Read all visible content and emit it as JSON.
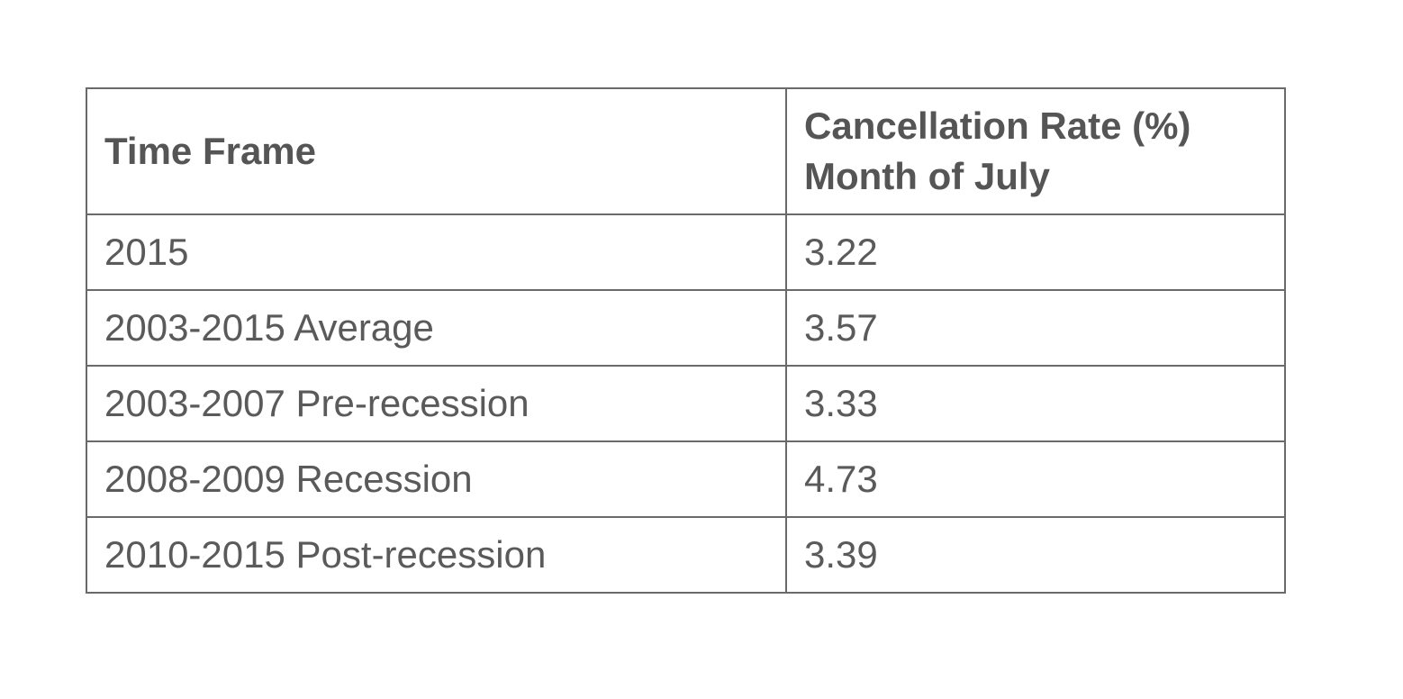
{
  "table": {
    "headers": {
      "time_frame": "Time Frame",
      "rate_line1": "Cancellation Rate (%)",
      "rate_line2": "Month of July"
    },
    "rows": [
      {
        "time_frame": "2015",
        "rate": "3.22"
      },
      {
        "time_frame": "2003-2015 Average",
        "rate": "3.57"
      },
      {
        "time_frame": "2003-2007 Pre-recession",
        "rate": "3.33"
      },
      {
        "time_frame": "2008-2009 Recession",
        "rate": "4.73"
      },
      {
        "time_frame": "2010-2015 Post-recession",
        "rate": "3.39"
      }
    ]
  },
  "colors": {
    "text": "#555555",
    "border": "#6a6a6a",
    "background": "#ffffff"
  }
}
